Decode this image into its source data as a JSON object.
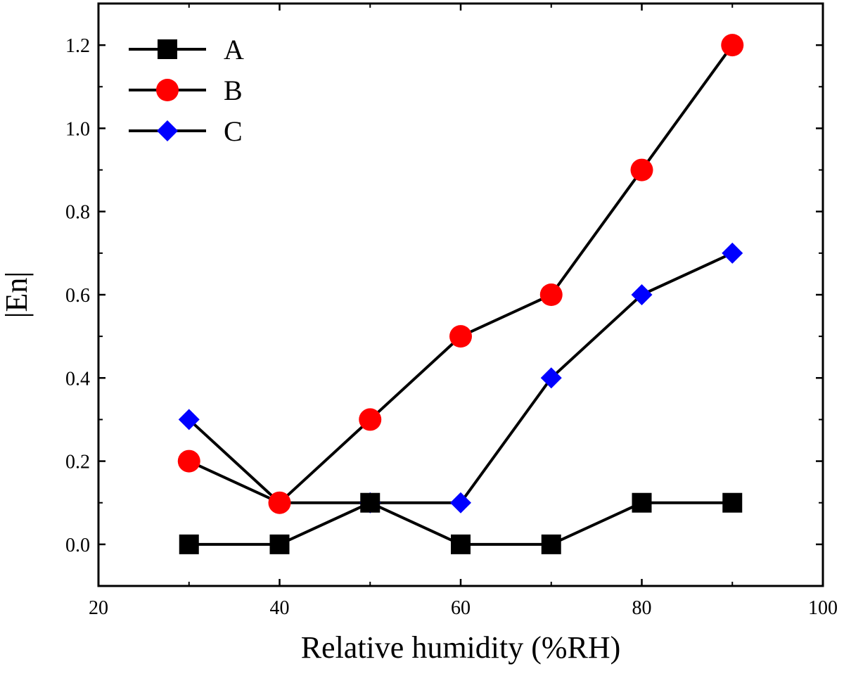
{
  "chart_data": {
    "type": "line",
    "title": "",
    "xlabel": "Relative humidity (%RH)",
    "ylabel": "|En|",
    "xlim": [
      20,
      100
    ],
    "ylim": [
      -0.1,
      1.3
    ],
    "x_ticks": [
      20,
      40,
      60,
      80,
      100
    ],
    "x_tick_labels": [
      "20",
      "40",
      "60",
      "80",
      "100"
    ],
    "y_ticks": [
      0.0,
      0.2,
      0.4,
      0.6,
      0.8,
      1.0,
      1.2
    ],
    "y_tick_labels": [
      "0.0",
      "0.2",
      "0.4",
      "0.6",
      "0.8",
      "1.0",
      "1.2"
    ],
    "grid": false,
    "legend_position": "top-left",
    "x": [
      30,
      40,
      50,
      60,
      70,
      80,
      90
    ],
    "series": [
      {
        "name": "A",
        "marker": "square",
        "color": "#000000",
        "values": [
          0.0,
          0.0,
          0.1,
          0.0,
          0.0,
          0.1,
          0.1
        ]
      },
      {
        "name": "B",
        "marker": "circle",
        "color": "#ff0000",
        "values": [
          0.2,
          0.1,
          0.3,
          0.5,
          0.6,
          0.9,
          1.2
        ]
      },
      {
        "name": "C",
        "marker": "diamond",
        "color": "#0000ff",
        "values": [
          0.3,
          0.1,
          0.1,
          0.1,
          0.4,
          0.6,
          0.7
        ]
      }
    ]
  }
}
